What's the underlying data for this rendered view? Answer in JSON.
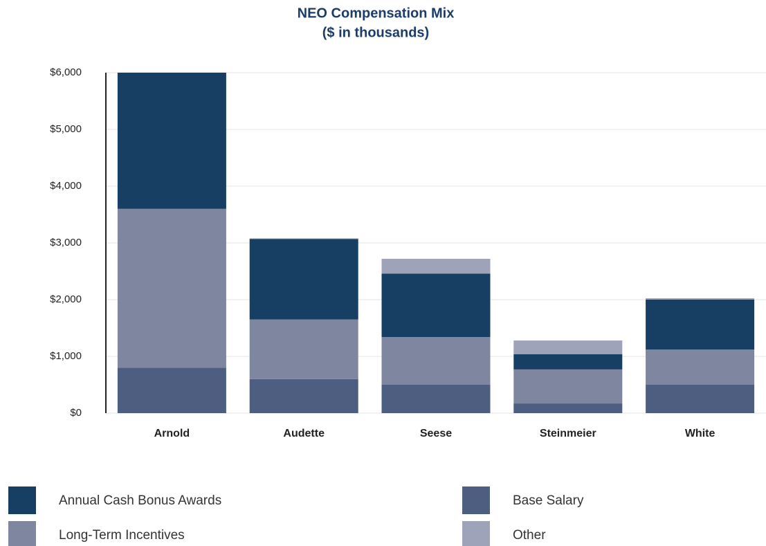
{
  "chart_data": {
    "type": "bar",
    "stacked": true,
    "title": "NEO Compensation Mix",
    "subtitle": "($ in thousands)",
    "categories": [
      "Arnold",
      "Audette",
      "Seese",
      "Steinmeier",
      "White"
    ],
    "series": [
      {
        "name": "Base Salary",
        "color": "#4e5e80",
        "values": [
          800,
          600,
          500,
          170,
          500
        ]
      },
      {
        "name": "Long-Term Incentives",
        "color": "#7f87a0",
        "values": [
          2800,
          1050,
          840,
          600,
          620
        ]
      },
      {
        "name": "Annual Cash Bonus Awards",
        "color": "#173f63",
        "values": [
          2400,
          1420,
          1120,
          270,
          880
        ]
      },
      {
        "name": "Other",
        "color": "#9fa3b9",
        "values": [
          0,
          10,
          260,
          240,
          25
        ]
      }
    ],
    "ylim": [
      0,
      6000
    ],
    "yticks": [
      {
        "value": 0,
        "label": "$0"
      },
      {
        "value": 1000,
        "label": "$1,000"
      },
      {
        "value": 2000,
        "label": "$2,000"
      },
      {
        "value": 3000,
        "label": "$3,000"
      },
      {
        "value": 4000,
        "label": "$4,000"
      },
      {
        "value": 5000,
        "label": "$5,000"
      },
      {
        "value": 6000,
        "label": "$6,000"
      }
    ],
    "grid": true
  }
}
